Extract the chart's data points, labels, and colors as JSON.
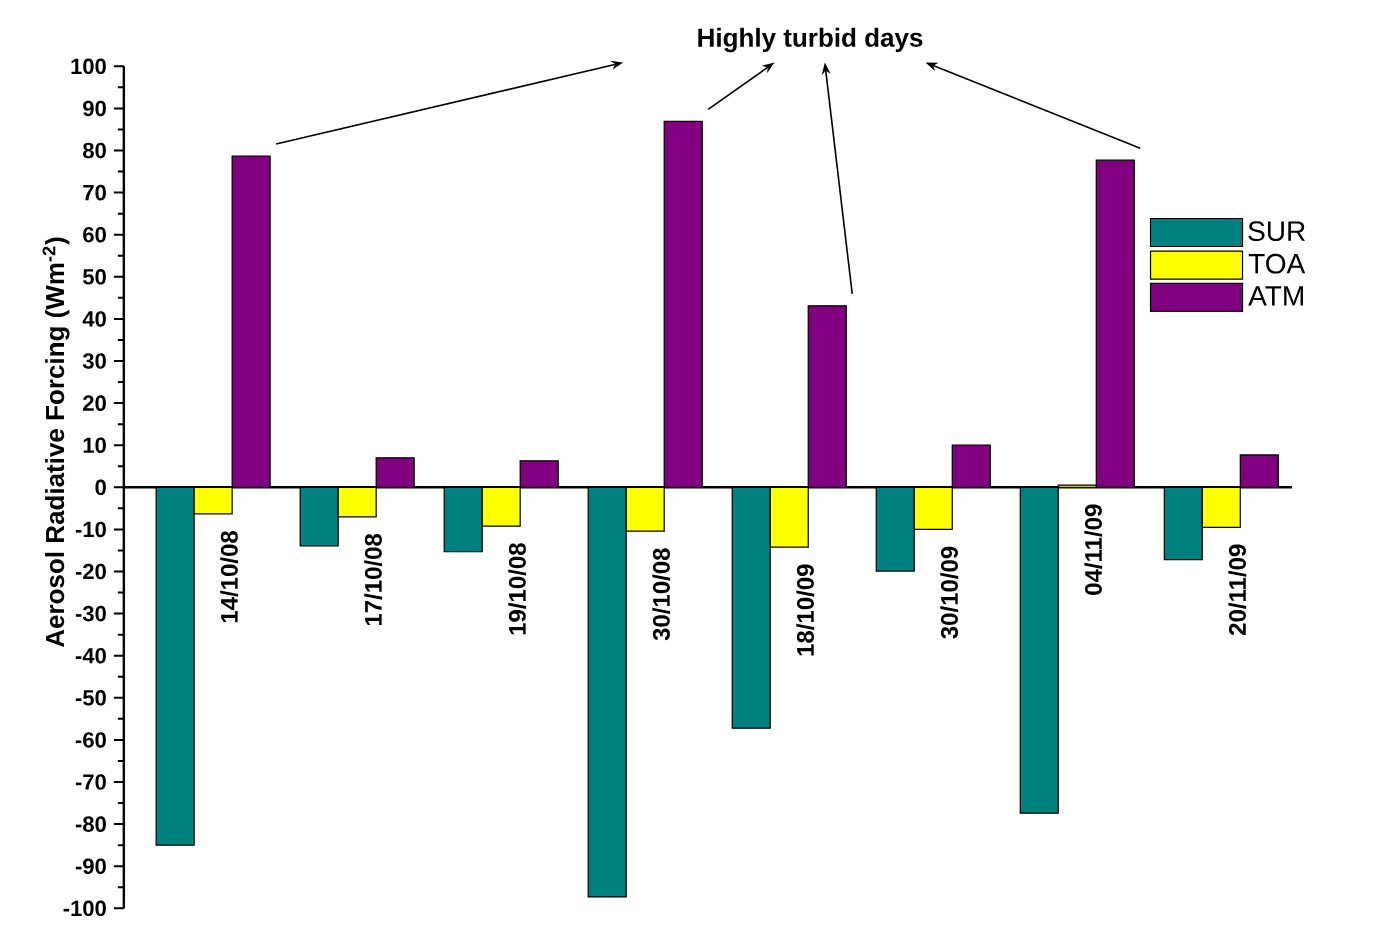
{
  "chart_data": {
    "type": "bar",
    "annotations": [
      "Highly turbid days"
    ],
    "ylabel": "Aerosol Radiative Forcing (Wm$^{-2}$)",
    "categories": [
      "14/10/08",
      "17/10/08",
      "19/10/08",
      "30/10/08",
      "18/10/09",
      "30/10/09",
      "04/11/09",
      "20/11/09"
    ],
    "series": [
      {
        "name": "SUR",
        "color": "#008080",
        "values": [
          -85,
          -13.9,
          -15.3,
          -97.3,
          -57.2,
          -19.9,
          -77.4,
          -17.2
        ]
      },
      {
        "name": "TOA",
        "color": "#ffff00",
        "values": [
          -6.3,
          -7,
          -9.2,
          -10.4,
          -14.2,
          -10,
          0.5,
          -9.5
        ]
      },
      {
        "name": "ATM",
        "color": "#800080",
        "values": [
          78.7,
          7,
          6.3,
          86.9,
          43.1,
          10,
          77.7,
          7.7
        ]
      }
    ],
    "ylim": [
      -100,
      100
    ],
    "yticks": [
      -100,
      -90,
      -80,
      -70,
      -60,
      -50,
      -40,
      -30,
      -20,
      -10,
      0,
      10,
      20,
      30,
      40,
      50,
      60,
      70,
      80,
      90,
      100
    ],
    "grid": false,
    "legend": "top right"
  }
}
